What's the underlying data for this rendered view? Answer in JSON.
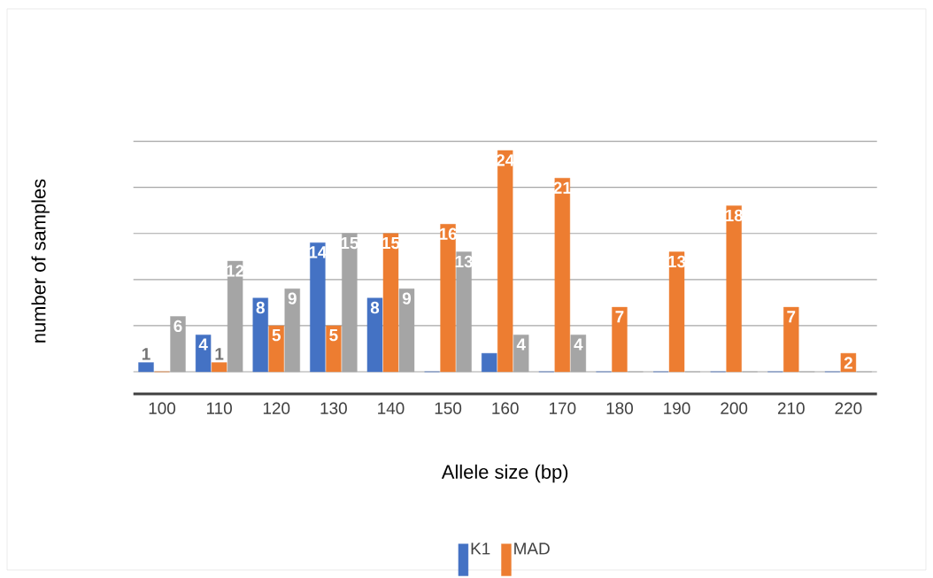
{
  "chart_data": {
    "type": "bar",
    "xlabel": "Allele size (bp)",
    "ylabel": "number of samples",
    "categories": [
      "100",
      "110",
      "120",
      "130",
      "140",
      "150",
      "160",
      "170",
      "180",
      "190",
      "200",
      "210",
      "220"
    ],
    "series": [
      {
        "name": "K1",
        "color": "#4472c4",
        "values": [
          1,
          4,
          8,
          14,
          8,
          0,
          2,
          0,
          0,
          0,
          0,
          0,
          0
        ],
        "value_labels": [
          "1",
          "4",
          "8",
          "14",
          "8",
          null,
          null,
          null,
          null,
          null,
          null,
          null,
          null
        ]
      },
      {
        "name": "MAD",
        "color": "#ed7d31",
        "values": [
          0,
          1,
          5,
          5,
          15,
          16,
          24,
          21,
          7,
          13,
          18,
          7,
          2
        ],
        "value_labels": [
          null,
          "1",
          "5",
          "5",
          "15",
          "16",
          "24",
          "21",
          "7",
          "13",
          "18",
          "7",
          "2"
        ]
      },
      {
        "color": "#a5a5a5",
        "values": [
          6,
          12,
          9,
          15,
          9,
          13,
          4,
          4,
          0,
          0,
          0,
          0,
          0
        ],
        "value_labels": [
          "6",
          "12",
          "9",
          "15",
          "9",
          "13",
          "4",
          "4",
          null,
          null,
          null,
          null,
          null
        ]
      }
    ],
    "tick_labels": "x",
    "grid": "y",
    "legend": "bottom"
  }
}
